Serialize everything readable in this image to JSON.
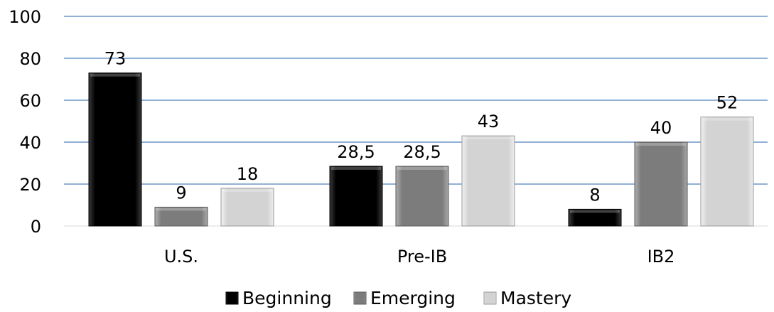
{
  "chart_data": {
    "type": "bar",
    "categories": [
      "U.S.",
      "Pre-IB",
      "IB2"
    ],
    "series": [
      {
        "name": "Beginning",
        "values": [
          73,
          28.5,
          8
        ],
        "labels": [
          "73",
          "28,5",
          "8"
        ],
        "color": "#111111"
      },
      {
        "name": "Emerging",
        "values": [
          9,
          28.5,
          40
        ],
        "labels": [
          "9",
          "28,5",
          "40"
        ],
        "color": "#858585"
      },
      {
        "name": "Mastery",
        "values": [
          18,
          43,
          52
        ],
        "labels": [
          "18",
          "43",
          "52"
        ],
        "color": "#d6d6d6"
      }
    ],
    "y_ticks": [
      "0",
      "20",
      "40",
      "60",
      "80",
      "100"
    ],
    "ylim": [
      0,
      100
    ],
    "grid": true,
    "gridline_color": "#4f81bd",
    "legend_position": "bottom"
  }
}
